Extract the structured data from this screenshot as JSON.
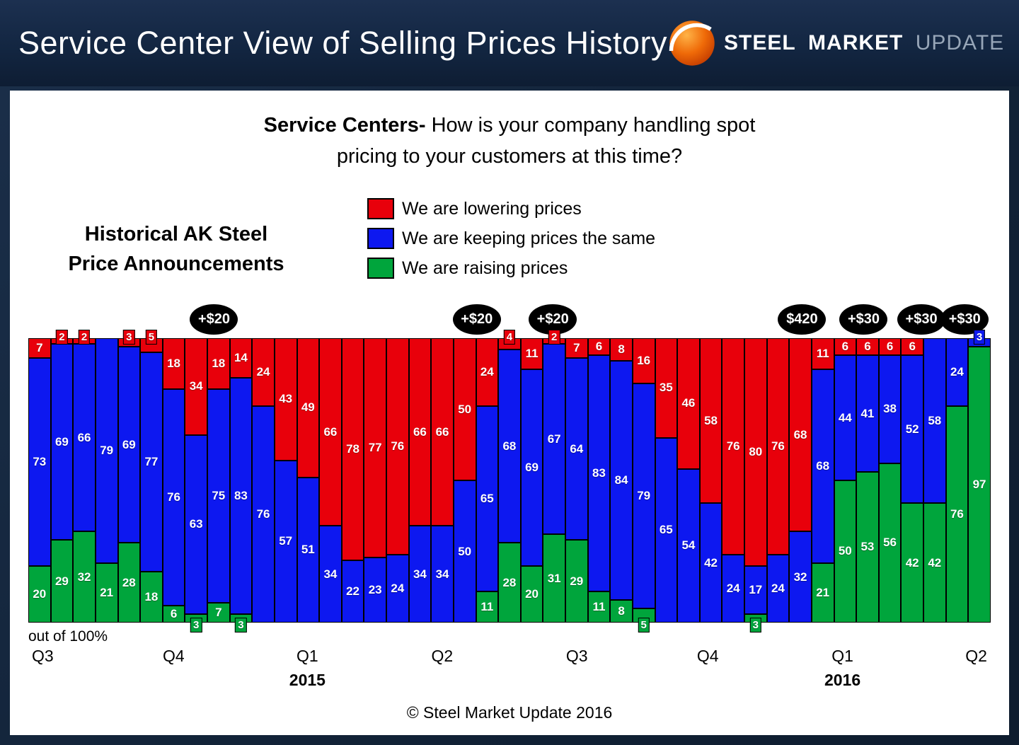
{
  "header": {
    "title": "Service Center View of Selling Prices History",
    "logo": {
      "steel": "STEEL",
      "market": "MARKET",
      "update": "UPDATE"
    }
  },
  "subtitle": {
    "bold": "Service Centers-",
    "rest": " How is your company handling spot pricing to your customers at this time?"
  },
  "left_label": {
    "line1": "Historical AK Steel",
    "line2": "Price Announcements"
  },
  "legend": [
    {
      "label": "We are lowering prices",
      "color": "#e8000b"
    },
    {
      "label": "We are keeping prices the same",
      "color": "#0d18f0"
    },
    {
      "label": "We are raising prices",
      "color": "#00a53c"
    }
  ],
  "axis": {
    "out_of": "out of 100%",
    "quarters": [
      {
        "label": "Q3",
        "pct": 1.5
      },
      {
        "label": "Q4",
        "pct": 15.1
      },
      {
        "label": "Q1",
        "pct": 29.0
      },
      {
        "label": "Q2",
        "pct": 43.0
      },
      {
        "label": "Q3",
        "pct": 57.0
      },
      {
        "label": "Q4",
        "pct": 70.6
      },
      {
        "label": "Q1",
        "pct": 84.6
      },
      {
        "label": "Q2",
        "pct": 98.5
      }
    ],
    "years": [
      {
        "label": "2015",
        "pct": 29.0
      },
      {
        "label": "2016",
        "pct": 84.6
      }
    ]
  },
  "footer": "© Steel Market Update 2016",
  "chart_data": {
    "type": "bar",
    "stacked": true,
    "percent_total": 100,
    "ylim": [
      0,
      100
    ],
    "title": "Service Centers- How is your company handling spot pricing to your customers at this time?",
    "legend_position": "top-center",
    "series": [
      {
        "name": "We are lowering prices",
        "color": "#e8000b",
        "values": [
          7,
          2,
          2,
          0,
          3,
          5,
          18,
          34,
          18,
          14,
          24,
          43,
          49,
          66,
          78,
          77,
          76,
          66,
          66,
          50,
          24,
          4,
          11,
          2,
          7,
          6,
          8,
          16,
          35,
          46,
          58,
          76,
          80,
          76,
          68,
          11,
          6,
          6,
          6,
          6,
          0,
          0,
          0
        ]
      },
      {
        "name": "We are keeping prices the same",
        "color": "#0d18f0",
        "values": [
          73,
          69,
          66,
          79,
          69,
          77,
          76,
          63,
          75,
          83,
          76,
          57,
          51,
          34,
          22,
          23,
          24,
          34,
          34,
          50,
          65,
          68,
          69,
          67,
          64,
          83,
          84,
          79,
          65,
          54,
          42,
          24,
          17,
          24,
          32,
          68,
          44,
          41,
          38,
          52,
          58,
          24,
          3
        ]
      },
      {
        "name": "We are raising prices",
        "color": "#00a53c",
        "values": [
          20,
          29,
          32,
          21,
          28,
          18,
          6,
          3,
          7,
          3,
          0,
          0,
          0,
          0,
          0,
          0,
          0,
          0,
          0,
          0,
          11,
          28,
          20,
          31,
          29,
          11,
          8,
          5,
          0,
          0,
          0,
          0,
          3,
          0,
          0,
          21,
          50,
          53,
          56,
          42,
          42,
          76,
          97
        ]
      }
    ],
    "annotations": [
      {
        "label": "+$20",
        "pct": 19.3
      },
      {
        "label": "+$20",
        "pct": 46.6
      },
      {
        "label": "+$20",
        "pct": 54.5
      },
      {
        "label": "$420",
        "pct": 80.4
      },
      {
        "label": "+$30",
        "pct": 86.8
      },
      {
        "label": "+$30",
        "pct": 92.8
      },
      {
        "label": "+$30",
        "pct": 97.3
      }
    ]
  }
}
